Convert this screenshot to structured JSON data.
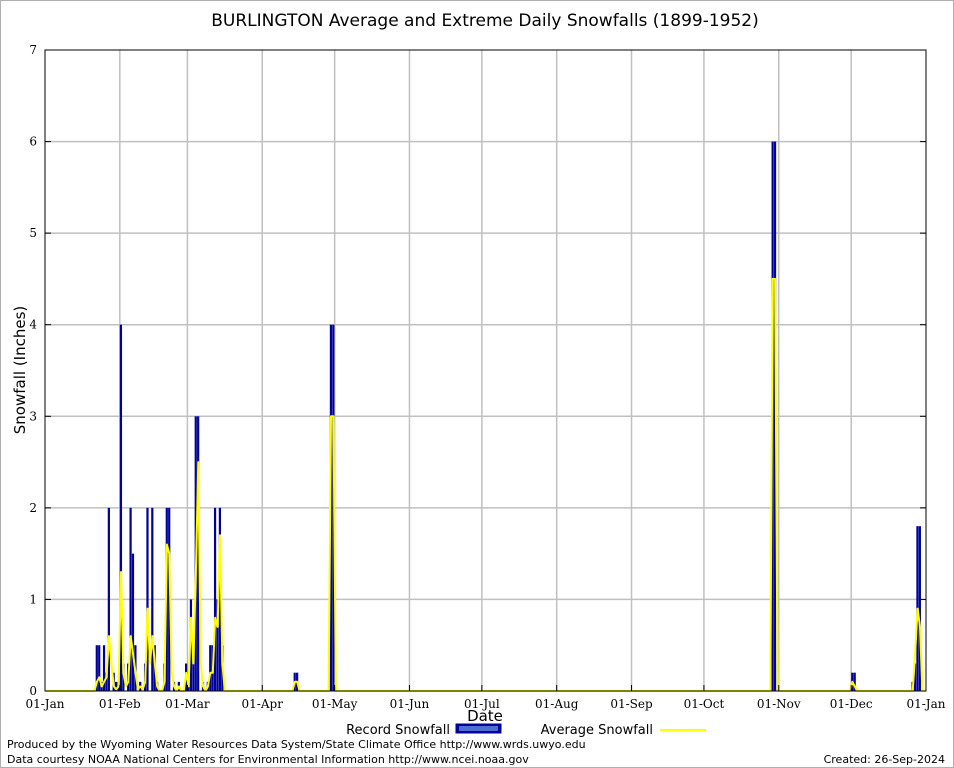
{
  "footer": {
    "produced_by": "Produced by the Wyoming Water Resources Data System/State Climate Office http://www.wrds.uwyo.edu",
    "courtesy": "Data courtesy NOAA National Centers for Environmental Information http://www.ncei.noaa.gov",
    "created": "Created: 26-Sep-2024"
  },
  "colors": {
    "record": "#000099",
    "average": "#ffff00",
    "grid": "#c0c0c0"
  },
  "chart_data": {
    "type": "bar",
    "title": "BURLINGTON Average and Extreme Daily Snowfalls (1899-1952)",
    "xlabel": "Date",
    "ylabel": "Snowfall (Inches)",
    "ylim": [
      0,
      7
    ],
    "yticks": [
      0,
      1,
      2,
      3,
      4,
      5,
      6,
      7
    ],
    "xlim": [
      "01-Jan",
      "01-Jan (next year)"
    ],
    "xticks": [
      "01-Jan",
      "01-Feb",
      "01-Mar",
      "01-Apr",
      "01-May",
      "01-Jun",
      "01-Jul",
      "01-Aug",
      "01-Sep",
      "01-Oct",
      "01-Nov",
      "01-Dec",
      "01-Jan"
    ],
    "grid": true,
    "legend": {
      "placement": "bottom",
      "entries": [
        "Record Snowfall",
        "Average Snowfall"
      ]
    },
    "series": [
      {
        "name": "Record Snowfall",
        "style": "bars",
        "points": [
          {
            "date": "22-Jan",
            "value": 0.5
          },
          {
            "date": "23-Jan",
            "value": 0.5
          },
          {
            "date": "24-Jan",
            "value": 0.1
          },
          {
            "date": "25-Jan",
            "value": 0.5
          },
          {
            "date": "26-Jan",
            "value": 0.2
          },
          {
            "date": "27-Jan",
            "value": 2.0
          },
          {
            "date": "29-Jan",
            "value": 0.2
          },
          {
            "date": "30-Jan",
            "value": 0.1
          },
          {
            "date": "31-Jan",
            "value": 0.1
          },
          {
            "date": "01-Feb",
            "value": 4.0
          },
          {
            "date": "02-Feb",
            "value": 0.3
          },
          {
            "date": "04-Feb",
            "value": 0.3
          },
          {
            "date": "05-Feb",
            "value": 2.0
          },
          {
            "date": "06-Feb",
            "value": 1.5
          },
          {
            "date": "07-Feb",
            "value": 0.5
          },
          {
            "date": "09-Feb",
            "value": 0.1
          },
          {
            "date": "11-Feb",
            "value": 0.3
          },
          {
            "date": "12-Feb",
            "value": 2.0
          },
          {
            "date": "14-Feb",
            "value": 2.0
          },
          {
            "date": "15-Feb",
            "value": 0.5
          },
          {
            "date": "16-Feb",
            "value": 0.1
          },
          {
            "date": "19-Feb",
            "value": 0.3
          },
          {
            "date": "20-Feb",
            "value": 2.0
          },
          {
            "date": "21-Feb",
            "value": 2.0
          },
          {
            "date": "23-Feb",
            "value": 0.1
          },
          {
            "date": "25-Feb",
            "value": 0.1
          },
          {
            "date": "28-Feb",
            "value": 0.3
          },
          {
            "date": "01-Mar",
            "value": 0.1
          },
          {
            "date": "02-Mar",
            "value": 1.0
          },
          {
            "date": "03-Mar",
            "value": 0.5
          },
          {
            "date": "04-Mar",
            "value": 3.0
          },
          {
            "date": "05-Mar",
            "value": 3.0
          },
          {
            "date": "07-Mar",
            "value": 0.1
          },
          {
            "date": "09-Mar",
            "value": 0.1
          },
          {
            "date": "10-Mar",
            "value": 0.5
          },
          {
            "date": "11-Mar",
            "value": 0.5
          },
          {
            "date": "12-Mar",
            "value": 2.0
          },
          {
            "date": "13-Mar",
            "value": 1.0
          },
          {
            "date": "14-Mar",
            "value": 2.0
          },
          {
            "date": "15-Mar",
            "value": 0.5
          },
          {
            "date": "14-Apr",
            "value": 0.2
          },
          {
            "date": "15-Apr",
            "value": 0.2
          },
          {
            "date": "29-Apr",
            "value": 4.0
          },
          {
            "date": "30-Apr",
            "value": 4.0
          },
          {
            "date": "29-Oct",
            "value": 6.0
          },
          {
            "date": "30-Oct",
            "value": 6.0
          },
          {
            "date": "01-Dec",
            "value": 0.2
          },
          {
            "date": "02-Dec",
            "value": 0.2
          },
          {
            "date": "26-Dec",
            "value": 0.1
          },
          {
            "date": "27-Dec",
            "value": 0.3
          },
          {
            "date": "28-Dec",
            "value": 1.8
          },
          {
            "date": "29-Dec",
            "value": 1.8
          }
        ]
      },
      {
        "name": "Average Snowfall",
        "style": "line",
        "points": [
          {
            "date": "01-Jan",
            "value": 0.0
          },
          {
            "date": "21-Jan",
            "value": 0.0
          },
          {
            "date": "22-Jan",
            "value": 0.1
          },
          {
            "date": "23-Jan",
            "value": 0.15
          },
          {
            "date": "24-Jan",
            "value": 0.05
          },
          {
            "date": "25-Jan",
            "value": 0.1
          },
          {
            "date": "26-Jan",
            "value": 0.15
          },
          {
            "date": "27-Jan",
            "value": 0.6
          },
          {
            "date": "28-Jan",
            "value": 0.3
          },
          {
            "date": "29-Jan",
            "value": 0.05
          },
          {
            "date": "30-Jan",
            "value": 0.02
          },
          {
            "date": "31-Jan",
            "value": 0.05
          },
          {
            "date": "01-Feb",
            "value": 1.3
          },
          {
            "date": "02-Feb",
            "value": 0.2
          },
          {
            "date": "03-Feb",
            "value": 0.05
          },
          {
            "date": "04-Feb",
            "value": 0.1
          },
          {
            "date": "05-Feb",
            "value": 0.6
          },
          {
            "date": "06-Feb",
            "value": 0.4
          },
          {
            "date": "07-Feb",
            "value": 0.2
          },
          {
            "date": "08-Feb",
            "value": 0.02
          },
          {
            "date": "09-Feb",
            "value": 0.05
          },
          {
            "date": "10-Feb",
            "value": 0.02
          },
          {
            "date": "11-Feb",
            "value": 0.1
          },
          {
            "date": "12-Feb",
            "value": 0.9
          },
          {
            "date": "13-Feb",
            "value": 0.3
          },
          {
            "date": "14-Feb",
            "value": 0.6
          },
          {
            "date": "15-Feb",
            "value": 0.3
          },
          {
            "date": "16-Feb",
            "value": 0.05
          },
          {
            "date": "17-Feb",
            "value": 0.0
          },
          {
            "date": "18-Feb",
            "value": 0.0
          },
          {
            "date": "19-Feb",
            "value": 0.1
          },
          {
            "date": "20-Feb",
            "value": 1.6
          },
          {
            "date": "21-Feb",
            "value": 1.5
          },
          {
            "date": "22-Feb",
            "value": 0.2
          },
          {
            "date": "23-Feb",
            "value": 0.05
          },
          {
            "date": "24-Feb",
            "value": 0.0
          },
          {
            "date": "25-Feb",
            "value": 0.05
          },
          {
            "date": "26-Feb",
            "value": 0.0
          },
          {
            "date": "27-Feb",
            "value": 0.0
          },
          {
            "date": "28-Feb",
            "value": 0.2
          },
          {
            "date": "01-Mar",
            "value": 0.05
          },
          {
            "date": "02-Mar",
            "value": 0.8
          },
          {
            "date": "03-Mar",
            "value": 0.3
          },
          {
            "date": "04-Mar",
            "value": 1.3
          },
          {
            "date": "05-Mar",
            "value": 2.5
          },
          {
            "date": "06-Mar",
            "value": 0.3
          },
          {
            "date": "07-Mar",
            "value": 0.05
          },
          {
            "date": "08-Mar",
            "value": 0.0
          },
          {
            "date": "09-Mar",
            "value": 0.05
          },
          {
            "date": "10-Mar",
            "value": 0.2
          },
          {
            "date": "11-Mar",
            "value": 0.2
          },
          {
            "date": "12-Mar",
            "value": 0.8
          },
          {
            "date": "13-Mar",
            "value": 0.7
          },
          {
            "date": "14-Mar",
            "value": 1.7
          },
          {
            "date": "15-Mar",
            "value": 0.3
          },
          {
            "date": "16-Mar",
            "value": 0.0
          },
          {
            "date": "13-Apr",
            "value": 0.0
          },
          {
            "date": "14-Apr",
            "value": 0.1
          },
          {
            "date": "15-Apr",
            "value": 0.1
          },
          {
            "date": "16-Apr",
            "value": 0.0
          },
          {
            "date": "28-Apr",
            "value": 0.0
          },
          {
            "date": "29-Apr",
            "value": 3.0
          },
          {
            "date": "30-Apr",
            "value": 3.0
          },
          {
            "date": "01-May",
            "value": 0.0
          },
          {
            "date": "28-Oct",
            "value": 0.0
          },
          {
            "date": "29-Oct",
            "value": 4.5
          },
          {
            "date": "30-Oct",
            "value": 4.5
          },
          {
            "date": "31-Oct",
            "value": 0.0
          },
          {
            "date": "30-Nov",
            "value": 0.0
          },
          {
            "date": "01-Dec",
            "value": 0.1
          },
          {
            "date": "02-Dec",
            "value": 0.05
          },
          {
            "date": "03-Dec",
            "value": 0.0
          },
          {
            "date": "26-Dec",
            "value": 0.0
          },
          {
            "date": "27-Dec",
            "value": 0.4
          },
          {
            "date": "28-Dec",
            "value": 0.9
          },
          {
            "date": "29-Dec",
            "value": 0.7
          },
          {
            "date": "30-Dec",
            "value": 0.0
          },
          {
            "date": "31-Dec",
            "value": 0.0
          }
        ]
      }
    ]
  }
}
